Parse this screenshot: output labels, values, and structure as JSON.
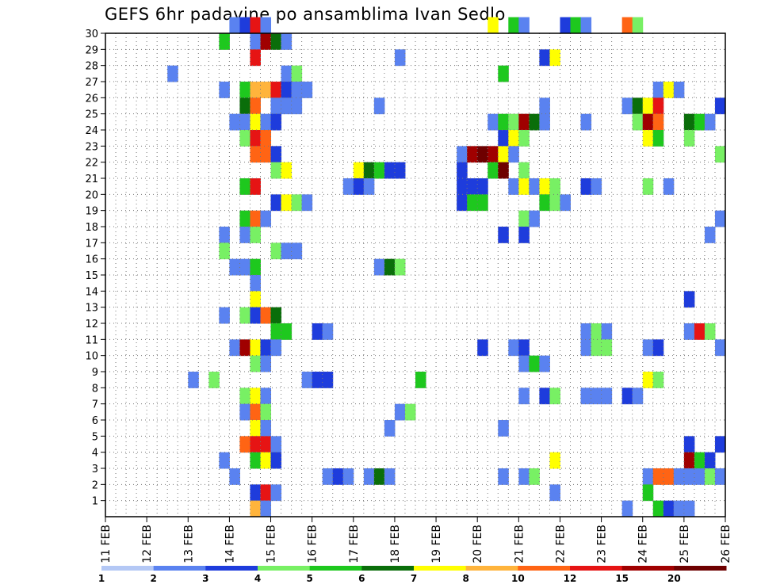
{
  "chart_data": {
    "type": "heatmap",
    "title": "GEFS 6hr padavine po ansamblima Ivan Sedlo",
    "xlabel": "",
    "ylabel": "",
    "x_ticks": [
      "11 FEB",
      "12 FEB",
      "13 FEB",
      "14 FEB",
      "15 FEB",
      "16 FEB",
      "17 FEB",
      "18 FEB",
      "19 FEB",
      "20 FEB",
      "21 FEB",
      "22 FEB",
      "23 FEB",
      "24 FEB",
      "25 FEB",
      "26 FEB"
    ],
    "x_range": [
      0,
      60
    ],
    "y_ticks": [
      1,
      2,
      3,
      4,
      5,
      6,
      7,
      8,
      9,
      10,
      11,
      12,
      13,
      14,
      15,
      16,
      17,
      18,
      19,
      20,
      21,
      22,
      23,
      24,
      25,
      26,
      27,
      28,
      29,
      30
    ],
    "y_range": [
      0,
      30
    ],
    "grid": true,
    "legend": {
      "placement": "bottom",
      "levels": [
        1,
        2,
        3,
        4,
        5,
        6,
        7,
        8,
        10,
        12,
        15,
        20
      ],
      "colors": [
        "#b4c8f5",
        "#5a82f0",
        "#1e3cdc",
        "#78f064",
        "#1ec81e",
        "#0a6e0a",
        "#ffff00",
        "#ffb43c",
        "#ff6414",
        "#e61414",
        "#a00000",
        "#6e0000"
      ]
    },
    "cells": [
      [
        30,
        12,
        1
      ],
      [
        30,
        13,
        2
      ],
      [
        30,
        14,
        9
      ],
      [
        30,
        15,
        1
      ],
      [
        30,
        37,
        6
      ],
      [
        30,
        39,
        4
      ],
      [
        30,
        40,
        1
      ],
      [
        30,
        44,
        2
      ],
      [
        30,
        45,
        4
      ],
      [
        30,
        46,
        1
      ],
      [
        30,
        50,
        8
      ],
      [
        30,
        51,
        3
      ],
      [
        29,
        11,
        4
      ],
      [
        29,
        14,
        1
      ],
      [
        29,
        15,
        10
      ],
      [
        29,
        16,
        5
      ],
      [
        29,
        17,
        1
      ],
      [
        28,
        14,
        9
      ],
      [
        28,
        28,
        1
      ],
      [
        28,
        42,
        2
      ],
      [
        28,
        43,
        6
      ],
      [
        27,
        6,
        1
      ],
      [
        27,
        17,
        1
      ],
      [
        27,
        18,
        3
      ],
      [
        27,
        38,
        4
      ],
      [
        26,
        11,
        1
      ],
      [
        26,
        13,
        4
      ],
      [
        26,
        14,
        7
      ],
      [
        26,
        15,
        7
      ],
      [
        26,
        16,
        9
      ],
      [
        26,
        17,
        2
      ],
      [
        26,
        18,
        1
      ],
      [
        26,
        19,
        1
      ],
      [
        26,
        53,
        1
      ],
      [
        26,
        54,
        6
      ],
      [
        26,
        55,
        1
      ],
      [
        25,
        13,
        5
      ],
      [
        25,
        14,
        8
      ],
      [
        25,
        16,
        1
      ],
      [
        25,
        17,
        1
      ],
      [
        25,
        18,
        1
      ],
      [
        25,
        26,
        1
      ],
      [
        25,
        42,
        1
      ],
      [
        25,
        50,
        1
      ],
      [
        25,
        51,
        5
      ],
      [
        25,
        52,
        6
      ],
      [
        25,
        53,
        9
      ],
      [
        25,
        59,
        2
      ],
      [
        24,
        12,
        1
      ],
      [
        24,
        13,
        1
      ],
      [
        24,
        14,
        6
      ],
      [
        24,
        15,
        1
      ],
      [
        24,
        16,
        2
      ],
      [
        24,
        37,
        1
      ],
      [
        24,
        38,
        4
      ],
      [
        24,
        39,
        3
      ],
      [
        24,
        40,
        10
      ],
      [
        24,
        41,
        5
      ],
      [
        24,
        42,
        1
      ],
      [
        24,
        46,
        1
      ],
      [
        24,
        51,
        3
      ],
      [
        24,
        52,
        10
      ],
      [
        24,
        53,
        8
      ],
      [
        24,
        56,
        5
      ],
      [
        24,
        57,
        4
      ],
      [
        24,
        58,
        1
      ],
      [
        23,
        13,
        3
      ],
      [
        23,
        14,
        9
      ],
      [
        23,
        15,
        8
      ],
      [
        23,
        38,
        2
      ],
      [
        23,
        39,
        6
      ],
      [
        23,
        40,
        3
      ],
      [
        23,
        52,
        6
      ],
      [
        23,
        53,
        4
      ],
      [
        23,
        56,
        3
      ],
      [
        22,
        14,
        8
      ],
      [
        22,
        15,
        8
      ],
      [
        22,
        16,
        2
      ],
      [
        22,
        34,
        1
      ],
      [
        22,
        35,
        10
      ],
      [
        22,
        36,
        11
      ],
      [
        22,
        37,
        10
      ],
      [
        22,
        38,
        6
      ],
      [
        22,
        39,
        1
      ],
      [
        22,
        59,
        3
      ],
      [
        21,
        16,
        3
      ],
      [
        21,
        17,
        6
      ],
      [
        21,
        24,
        6
      ],
      [
        21,
        25,
        5
      ],
      [
        21,
        26,
        4
      ],
      [
        21,
        27,
        2
      ],
      [
        21,
        28,
        2
      ],
      [
        21,
        34,
        2
      ],
      [
        21,
        37,
        4
      ],
      [
        21,
        38,
        11
      ],
      [
        21,
        40,
        3
      ],
      [
        20,
        13,
        4
      ],
      [
        20,
        14,
        9
      ],
      [
        20,
        23,
        1
      ],
      [
        20,
        24,
        2
      ],
      [
        20,
        25,
        1
      ],
      [
        20,
        34,
        2
      ],
      [
        20,
        35,
        2
      ],
      [
        20,
        36,
        2
      ],
      [
        20,
        39,
        1
      ],
      [
        20,
        40,
        6
      ],
      [
        20,
        41,
        1
      ],
      [
        20,
        42,
        6
      ],
      [
        20,
        43,
        3
      ],
      [
        20,
        46,
        2
      ],
      [
        20,
        47,
        1
      ],
      [
        20,
        52,
        3
      ],
      [
        20,
        54,
        1
      ],
      [
        19,
        16,
        2
      ],
      [
        19,
        17,
        6
      ],
      [
        19,
        18,
        3
      ],
      [
        19,
        19,
        1
      ],
      [
        19,
        34,
        2
      ],
      [
        19,
        35,
        4
      ],
      [
        19,
        36,
        4
      ],
      [
        19,
        42,
        4
      ],
      [
        19,
        43,
        3
      ],
      [
        19,
        44,
        1
      ],
      [
        18,
        13,
        4
      ],
      [
        18,
        14,
        8
      ],
      [
        18,
        15,
        1
      ],
      [
        18,
        40,
        3
      ],
      [
        18,
        41,
        1
      ],
      [
        18,
        59,
        1
      ],
      [
        17,
        11,
        1
      ],
      [
        17,
        13,
        1
      ],
      [
        17,
        14,
        3
      ],
      [
        17,
        38,
        2
      ],
      [
        17,
        40,
        2
      ],
      [
        17,
        58,
        1
      ],
      [
        16,
        11,
        3
      ],
      [
        16,
        16,
        3
      ],
      [
        16,
        17,
        1
      ],
      [
        16,
        18,
        1
      ],
      [
        15,
        12,
        1
      ],
      [
        15,
        13,
        1
      ],
      [
        15,
        14,
        4
      ],
      [
        15,
        26,
        1
      ],
      [
        15,
        27,
        5
      ],
      [
        15,
        28,
        3
      ],
      [
        14,
        14,
        1
      ],
      [
        13,
        14,
        6
      ],
      [
        13,
        56,
        2
      ],
      [
        12,
        11,
        1
      ],
      [
        12,
        13,
        3
      ],
      [
        12,
        14,
        2
      ],
      [
        12,
        15,
        8
      ],
      [
        12,
        16,
        5
      ],
      [
        11,
        16,
        4
      ],
      [
        11,
        17,
        4
      ],
      [
        11,
        20,
        2
      ],
      [
        11,
        21,
        1
      ],
      [
        11,
        46,
        1
      ],
      [
        11,
        47,
        3
      ],
      [
        11,
        48,
        1
      ],
      [
        11,
        56,
        1
      ],
      [
        11,
        57,
        9
      ],
      [
        11,
        58,
        3
      ],
      [
        10,
        12,
        1
      ],
      [
        10,
        13,
        10
      ],
      [
        10,
        14,
        6
      ],
      [
        10,
        15,
        2
      ],
      [
        10,
        16,
        1
      ],
      [
        10,
        36,
        2
      ],
      [
        10,
        39,
        1
      ],
      [
        10,
        40,
        2
      ],
      [
        10,
        46,
        1
      ],
      [
        10,
        47,
        3
      ],
      [
        10,
        48,
        3
      ],
      [
        10,
        52,
        1
      ],
      [
        10,
        53,
        2
      ],
      [
        10,
        59,
        1
      ],
      [
        9,
        14,
        3
      ],
      [
        9,
        15,
        1
      ],
      [
        9,
        40,
        1
      ],
      [
        9,
        41,
        4
      ],
      [
        9,
        42,
        1
      ],
      [
        8,
        8,
        1
      ],
      [
        8,
        10,
        3
      ],
      [
        8,
        19,
        1
      ],
      [
        8,
        20,
        2
      ],
      [
        8,
        21,
        2
      ],
      [
        8,
        30,
        4
      ],
      [
        8,
        52,
        6
      ],
      [
        8,
        53,
        3
      ],
      [
        7,
        13,
        3
      ],
      [
        7,
        14,
        6
      ],
      [
        7,
        15,
        1
      ],
      [
        7,
        40,
        1
      ],
      [
        7,
        42,
        2
      ],
      [
        7,
        43,
        3
      ],
      [
        7,
        46,
        1
      ],
      [
        7,
        47,
        1
      ],
      [
        7,
        48,
        1
      ],
      [
        7,
        50,
        2
      ],
      [
        7,
        51,
        1
      ],
      [
        6,
        13,
        1
      ],
      [
        6,
        14,
        8
      ],
      [
        6,
        15,
        3
      ],
      [
        6,
        28,
        1
      ],
      [
        6,
        29,
        3
      ],
      [
        5,
        14,
        6
      ],
      [
        5,
        15,
        1
      ],
      [
        5,
        27,
        1
      ],
      [
        5,
        38,
        1
      ],
      [
        4,
        13,
        8
      ],
      [
        4,
        14,
        9
      ],
      [
        4,
        15,
        9
      ],
      [
        4,
        16,
        1
      ],
      [
        4,
        56,
        2
      ],
      [
        4,
        59,
        2
      ],
      [
        3,
        11,
        1
      ],
      [
        3,
        14,
        4
      ],
      [
        3,
        15,
        6
      ],
      [
        3,
        16,
        2
      ],
      [
        3,
        43,
        6
      ],
      [
        3,
        56,
        10
      ],
      [
        3,
        57,
        4
      ],
      [
        3,
        58,
        2
      ],
      [
        2,
        12,
        1
      ],
      [
        2,
        21,
        1
      ],
      [
        2,
        22,
        2
      ],
      [
        2,
        23,
        1
      ],
      [
        2,
        25,
        1
      ],
      [
        2,
        26,
        5
      ],
      [
        2,
        27,
        1
      ],
      [
        2,
        38,
        1
      ],
      [
        2,
        40,
        1
      ],
      [
        2,
        41,
        3
      ],
      [
        2,
        52,
        1
      ],
      [
        2,
        53,
        8
      ],
      [
        2,
        54,
        8
      ],
      [
        2,
        55,
        1
      ],
      [
        2,
        56,
        1
      ],
      [
        2,
        57,
        1
      ],
      [
        2,
        58,
        3
      ],
      [
        2,
        59,
        1
      ],
      [
        1,
        14,
        2
      ],
      [
        1,
        15,
        9
      ],
      [
        1,
        16,
        1
      ],
      [
        1,
        43,
        1
      ],
      [
        1,
        52,
        4
      ],
      [
        0,
        14,
        7
      ],
      [
        0,
        15,
        1
      ],
      [
        0,
        50,
        1
      ],
      [
        0,
        53,
        4
      ],
      [
        0,
        54,
        2
      ],
      [
        0,
        55,
        1
      ],
      [
        0,
        56,
        1
      ]
    ]
  }
}
